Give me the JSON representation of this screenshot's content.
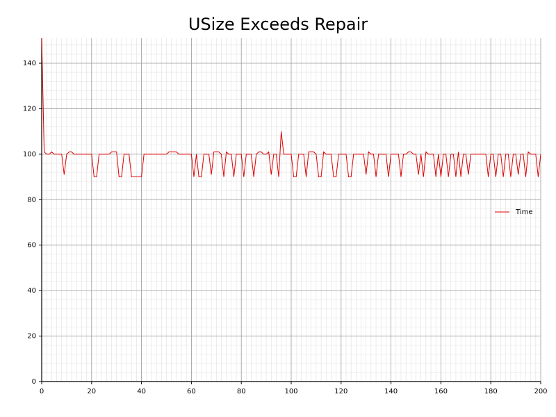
{
  "chart_data": {
    "type": "line",
    "title": "USize Exceeds Repair",
    "x": [
      0,
      1,
      2,
      3,
      4,
      5,
      6,
      7,
      8,
      9,
      10,
      11,
      12,
      13,
      14,
      15,
      16,
      17,
      18,
      19,
      20,
      21,
      22,
      23,
      24,
      25,
      26,
      27,
      28,
      29,
      30,
      31,
      32,
      33,
      34,
      35,
      36,
      37,
      38,
      39,
      40,
      41,
      42,
      43,
      44,
      45,
      46,
      47,
      48,
      49,
      50,
      51,
      52,
      53,
      54,
      55,
      56,
      57,
      58,
      59,
      60,
      61,
      62,
      63,
      64,
      65,
      66,
      67,
      68,
      69,
      70,
      71,
      72,
      73,
      74,
      75,
      76,
      77,
      78,
      79,
      80,
      81,
      82,
      83,
      84,
      85,
      86,
      87,
      88,
      89,
      90,
      91,
      92,
      93,
      94,
      95,
      96,
      97,
      98,
      99,
      100,
      101,
      102,
      103,
      104,
      105,
      106,
      107,
      108,
      109,
      110,
      111,
      112,
      113,
      114,
      115,
      116,
      117,
      118,
      119,
      120,
      121,
      122,
      123,
      124,
      125,
      126,
      127,
      128,
      129,
      130,
      131,
      132,
      133,
      134,
      135,
      136,
      137,
      138,
      139,
      140,
      141,
      142,
      143,
      144,
      145,
      146,
      147,
      148,
      149,
      150,
      151,
      152,
      153,
      154,
      155,
      156,
      157,
      158,
      159,
      160,
      161,
      162,
      163,
      164,
      165,
      166,
      167,
      168,
      169,
      170,
      171,
      172,
      173,
      174,
      175,
      176,
      177,
      178,
      179,
      180,
      181,
      182,
      183,
      184,
      185,
      186,
      187,
      188,
      189,
      190,
      191,
      192,
      193,
      194,
      195,
      196,
      197,
      198,
      199,
      200
    ],
    "series": [
      {
        "name": "Time",
        "color": "#e00000",
        "values": [
          151,
          101,
          100,
          100,
          101,
          100,
          100,
          100,
          100,
          91,
          100,
          101,
          101,
          100,
          100,
          100,
          100,
          100,
          100,
          100,
          100,
          90,
          90,
          100,
          100,
          100,
          100,
          100,
          101,
          101,
          101,
          90,
          90,
          100,
          100,
          100,
          90,
          90,
          90,
          90,
          90,
          100,
          100,
          100,
          100,
          100,
          100,
          100,
          100,
          100,
          100,
          101,
          101,
          101,
          101,
          100,
          100,
          100,
          100,
          100,
          100,
          90,
          100,
          90,
          90,
          100,
          100,
          100,
          91,
          101,
          101,
          101,
          100,
          90,
          101,
          100,
          100,
          90,
          100,
          100,
          100,
          90,
          100,
          100,
          100,
          90,
          100,
          101,
          101,
          100,
          100,
          101,
          91,
          100,
          100,
          90,
          110,
          100,
          100,
          100,
          100,
          90,
          90,
          100,
          100,
          100,
          90,
          101,
          101,
          101,
          100,
          90,
          90,
          101,
          100,
          100,
          100,
          90,
          90,
          100,
          100,
          100,
          100,
          90,
          90,
          100,
          100,
          100,
          100,
          100,
          91,
          101,
          100,
          100,
          90,
          100,
          100,
          100,
          100,
          90,
          100,
          100,
          100,
          100,
          90,
          100,
          100,
          101,
          101,
          100,
          100,
          91,
          100,
          90,
          101,
          100,
          100,
          100,
          90,
          100,
          90,
          100,
          100,
          90,
          100,
          100,
          90,
          101,
          90,
          100,
          100,
          91,
          100,
          100,
          100,
          100,
          100,
          100,
          100,
          90,
          100,
          100,
          90,
          100,
          100,
          90,
          100,
          100,
          90,
          100,
          100,
          91,
          100,
          100,
          90,
          101,
          100,
          100,
          100,
          90,
          100
        ]
      }
    ],
    "xlim": [
      0,
      200
    ],
    "xticks": [
      0,
      20,
      40,
      60,
      80,
      100,
      120,
      140,
      160,
      180,
      200
    ],
    "ylim": [
      0,
      151
    ],
    "yticks": [
      0,
      20,
      40,
      60,
      80,
      100,
      120,
      140
    ],
    "grid": true,
    "legend": "right"
  }
}
